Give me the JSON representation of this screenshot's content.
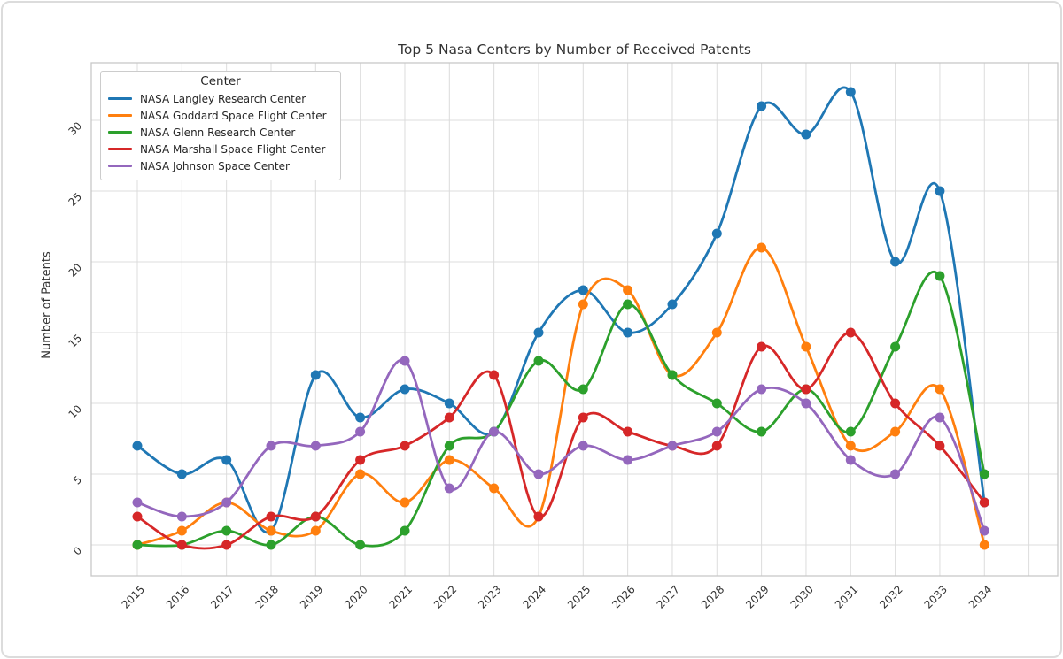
{
  "chart": {
    "title": "Top 5 Nasa Centers by Number of Received Patents",
    "ylabel": "Number of Patents",
    "xlabel": "",
    "legend_title": "Center"
  },
  "chart_data": {
    "type": "line",
    "title": "Top 5 Nasa Centers by Number of Received Patents",
    "xlabel": "",
    "ylabel": "Number of Patents",
    "legend_title": "Center",
    "legend_position": "upper left",
    "grid": true,
    "x_ticks": [
      "2015",
      "2016",
      "2017",
      "2018",
      "2019",
      "2020",
      "2021",
      "2022",
      "2023",
      "2024",
      "2025",
      "2026",
      "2027",
      "2028",
      "2029",
      "2030",
      "2031",
      "2032",
      "2033",
      "2034"
    ],
    "y_ticks": [
      "0",
      "5",
      "10",
      "15",
      "20",
      "25",
      "30"
    ],
    "ylim": [
      -2.2,
      34.1
    ],
    "series": [
      {
        "name": "NASA Langley Research Center",
        "color": "#1f77b4",
        "values": [
          7,
          5,
          6,
          1,
          12,
          9,
          11,
          10,
          8,
          15,
          18,
          15,
          17,
          22,
          31,
          29,
          32,
          20,
          25,
          3
        ]
      },
      {
        "name": "NASA Goddard Space Flight Center",
        "color": "#ff7f0e",
        "values": [
          0,
          1,
          3,
          1,
          1,
          5,
          3,
          6,
          4,
          2,
          17,
          18,
          12,
          15,
          21,
          14,
          7,
          8,
          11,
          0
        ]
      },
      {
        "name": "NASA Glenn Research Center",
        "color": "#2ca02c",
        "values": [
          0,
          0,
          1,
          0,
          2,
          0,
          1,
          7,
          8,
          13,
          11,
          17,
          12,
          10,
          8,
          11,
          8,
          14,
          19,
          5
        ]
      },
      {
        "name": "NASA Marshall Space Flight Center",
        "color": "#d62728",
        "values": [
          2,
          0,
          0,
          2,
          2,
          6,
          7,
          9,
          12,
          2,
          9,
          8,
          7,
          7,
          14,
          11,
          15,
          10,
          7,
          3
        ]
      },
      {
        "name": "NASA Johnson Space Center",
        "color": "#9467bd",
        "values": [
          3,
          2,
          3,
          7,
          7,
          8,
          13,
          4,
          8,
          5,
          7,
          6,
          7,
          8,
          11,
          10,
          6,
          5,
          9,
          1
        ]
      }
    ]
  }
}
